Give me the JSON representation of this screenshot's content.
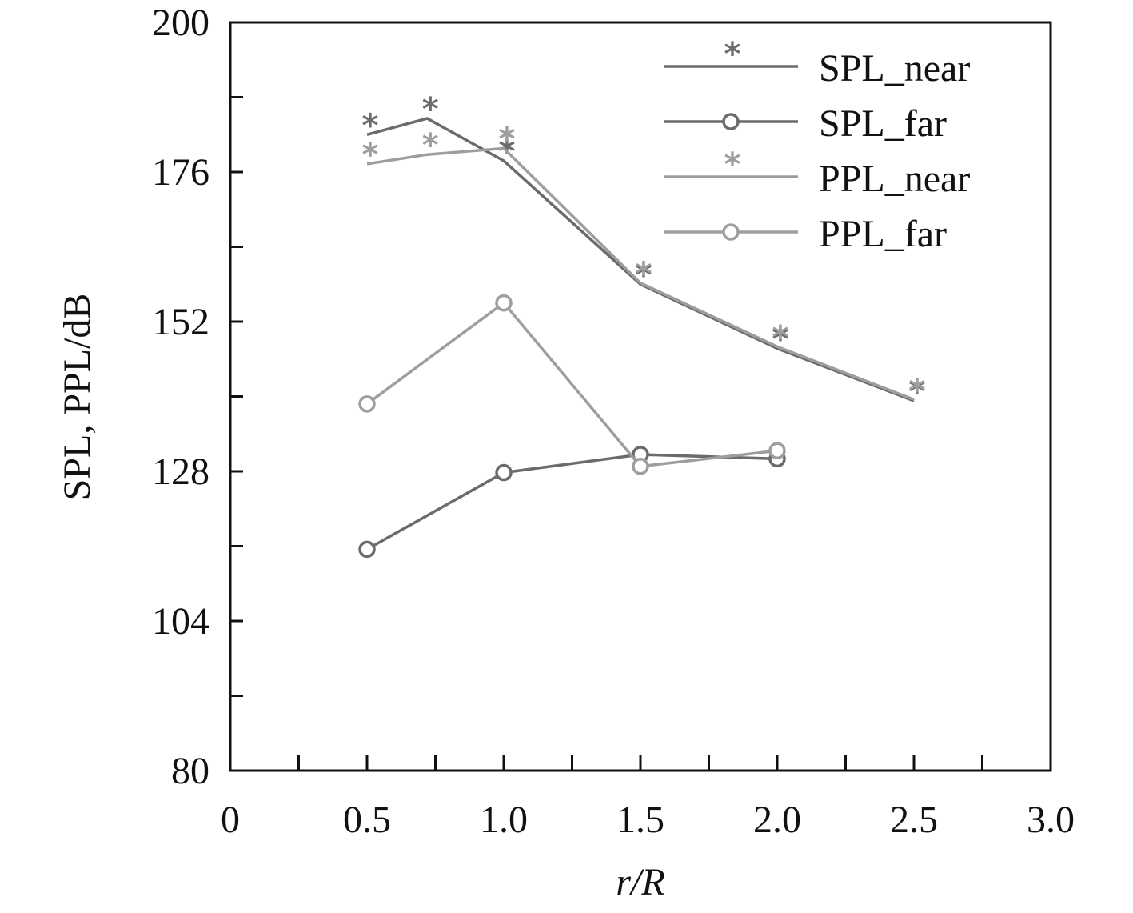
{
  "chart_data": {
    "type": "line",
    "xlabel": "r/R",
    "ylabel": "SPL, PPL/dB",
    "xlim": [
      0,
      3.0
    ],
    "ylim": [
      80,
      200
    ],
    "xticks": [
      0,
      0.5,
      1.0,
      1.5,
      2.0,
      2.5,
      3.0
    ],
    "xtick_labels": [
      "0",
      "0.5",
      "1.0",
      "1.5",
      "2.0",
      "2.5",
      "3.0"
    ],
    "yticks": [
      80,
      104,
      128,
      152,
      176,
      200
    ],
    "ytick_labels": [
      "80",
      "104",
      "128",
      "152",
      "176",
      "200"
    ],
    "legend_position": "top-right",
    "series": [
      {
        "name": "SPL_near",
        "marker": "star",
        "color": "#6b6b6b",
        "x": [
          0.5,
          0.72,
          1.0,
          1.5,
          2.0,
          2.5
        ],
        "y": [
          182,
          184.6,
          177.8,
          158,
          147.7,
          139.3
        ]
      },
      {
        "name": "SPL_far",
        "marker": "circle",
        "color": "#6b6b6b",
        "x": [
          0.5,
          1.0,
          1.5,
          2.0
        ],
        "y": [
          115.5,
          127.8,
          130.7,
          130.0
        ]
      },
      {
        "name": "PPL_near",
        "marker": "star",
        "color": "#9e9e9e",
        "x": [
          0.5,
          0.72,
          1.0,
          1.5,
          2.0,
          2.5
        ],
        "y": [
          177.3,
          178.8,
          179.8,
          158.2,
          148,
          139.5
        ]
      },
      {
        "name": "PPL_far",
        "marker": "circle",
        "color": "#9e9e9e",
        "x": [
          0.5,
          1.0,
          1.5,
          2.0
        ],
        "y": [
          138.8,
          155.0,
          128.8,
          131.3
        ]
      }
    ]
  }
}
